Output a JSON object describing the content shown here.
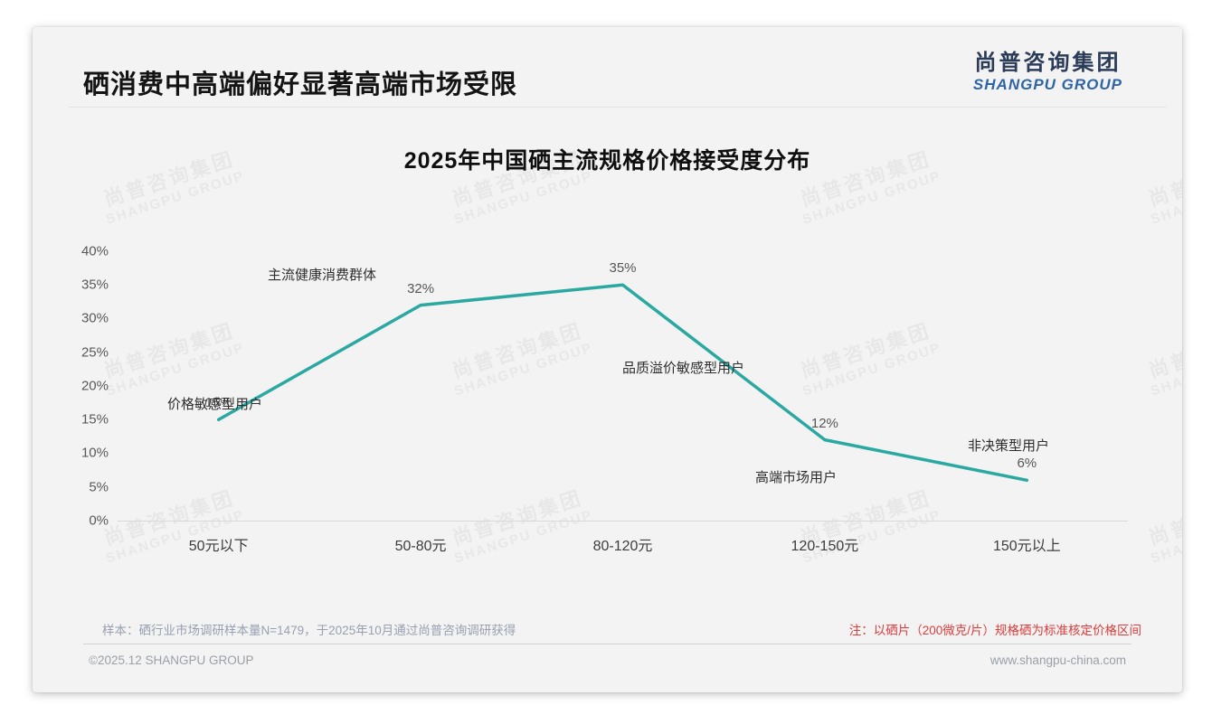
{
  "page": {
    "header_title": "硒消费中高端偏好显著高端市场受限",
    "logo": {
      "cn": "尚普咨询集团",
      "en": "SHANGPU GROUP"
    },
    "watermark": {
      "cn": "尚普咨询集团",
      "en": "SHANGPU GROUP"
    },
    "notes": {
      "sample": "样本：硒行业市场调研样本量N=1479，于2025年10月通过尚普咨询调研获得",
      "red": "注：以硒片（200微克/片）规格硒为标准核定价格区间"
    },
    "footer": {
      "left": "©2025.12 SHANGPU GROUP",
      "right": "www.shangpu-china.com"
    }
  },
  "chart_data": {
    "type": "line",
    "title": "2025年中国硒主流规格价格接受度分布",
    "categories": [
      "50元以下",
      "50-80元",
      "80-120元",
      "120-150元",
      "150元以上"
    ],
    "values": [
      15,
      32,
      35,
      12,
      6
    ],
    "value_labels": [
      "15%",
      "32%",
      "35%",
      "12%",
      "6%"
    ],
    "point_annotations": [
      "价格敏感型用户",
      "主流健康消费群体",
      "品质溢价敏感型用户",
      "高端市场用户",
      "非决策型用户"
    ],
    "yticks": [
      "40%",
      "35%",
      "30%",
      "25%",
      "20%",
      "15%",
      "10%",
      "5%",
      "0%"
    ],
    "ylim": [
      0,
      40
    ],
    "xlabel": "",
    "ylabel": "",
    "grid": false,
    "legend": false,
    "line_color": "#2BA8A1"
  }
}
